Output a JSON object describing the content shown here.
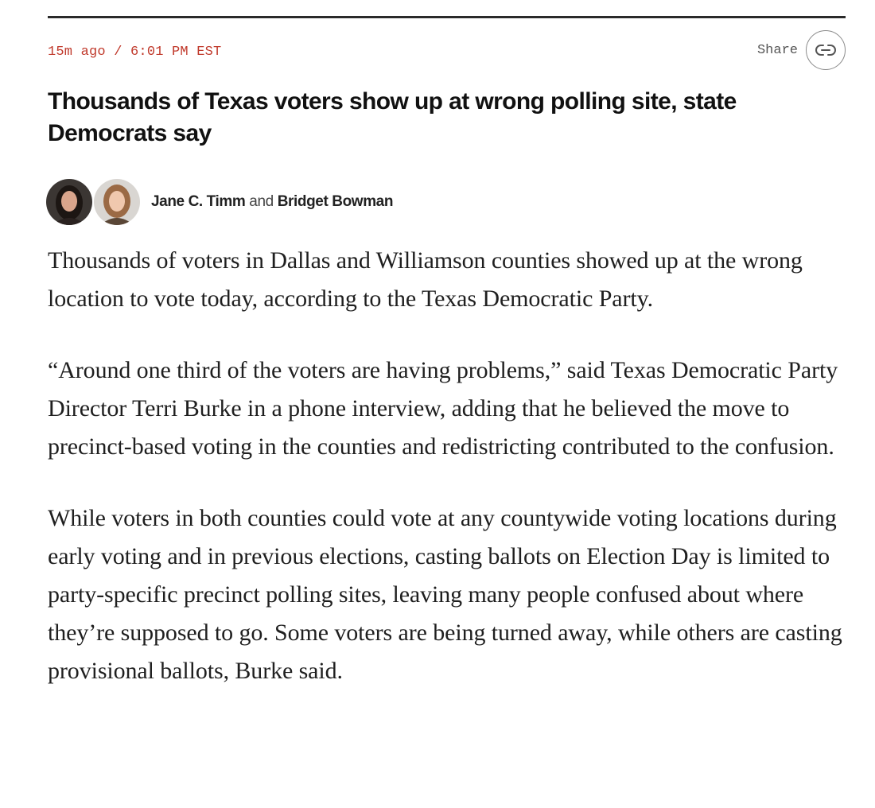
{
  "post": {
    "timestamp": "15m ago / 6:01 PM EST",
    "share_label": "Share",
    "headline": "Thousands of Texas voters show up at wrong polling site, state Democrats say"
  },
  "byline": {
    "author1": "Jane C. Timm",
    "conjunction": "and",
    "author2": "Bridget Bowman"
  },
  "icons": {
    "share": "link-icon",
    "avatar1": "author-photo-jane-c-timm",
    "avatar2": "author-photo-bridget-bowman"
  },
  "colors": {
    "timestamp": "#c0392b",
    "rule": "#2a2a2a"
  },
  "article": {
    "paragraphs": [
      "Thousands of voters in Dallas and Williamson counties showed up at the wrong location to vote today, according to the Texas Democratic Party.",
      "“Around one third of the voters are having problems,” said Texas Democratic Party Director Terri Burke in a phone interview, adding that he believed the move to precinct-based voting in the counties and redistricting contributed to the confusion.",
      "While voters in both counties could vote at any countywide voting locations during early voting and in previous elections, casting ballots on Election Day is limited to party-specific precinct polling sites, leaving many people confused about where they’re supposed to go. Some voters are being turned away, while others are casting provisional ballots, Burke said."
    ]
  }
}
